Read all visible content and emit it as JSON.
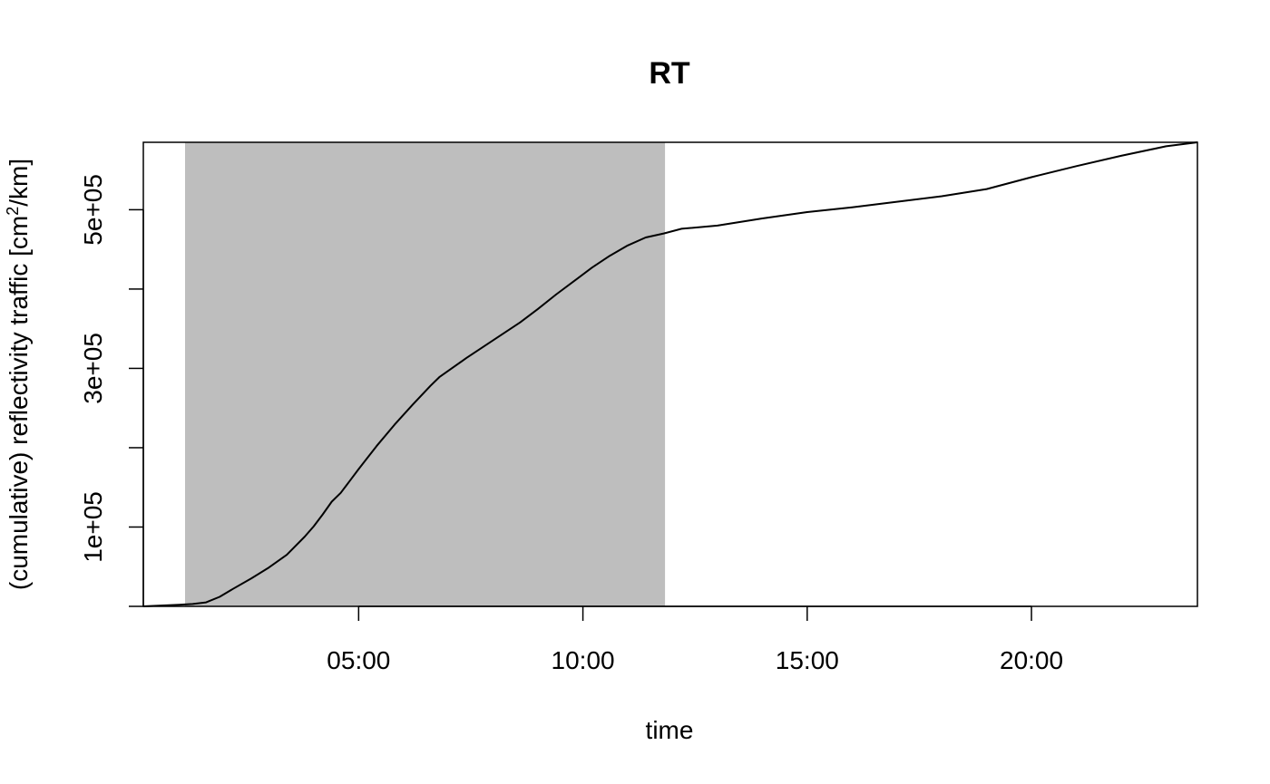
{
  "chart_data": {
    "type": "line",
    "title": "RT",
    "xlabel": "time",
    "ylabel": "(cumulative) reflectivity traffic [cm",
    "ylabel_sup": "2",
    "ylabel_suffix": "/km]",
    "x_unit": "hours",
    "xlim": [
      0.2,
      23.7
    ],
    "ylim": [
      0,
      585000
    ],
    "x_ticks": [
      {
        "value": 5,
        "label": "05:00"
      },
      {
        "value": 10,
        "label": "10:00"
      },
      {
        "value": 15,
        "label": "15:00"
      },
      {
        "value": 20,
        "label": "20:00"
      }
    ],
    "y_ticks": [
      {
        "value": 0,
        "label": ""
      },
      {
        "value": 100000,
        "label": "1e+05"
      },
      {
        "value": 200000,
        "label": ""
      },
      {
        "value": 300000,
        "label": "3e+05"
      },
      {
        "value": 400000,
        "label": ""
      },
      {
        "value": 500000,
        "label": "5e+05"
      }
    ],
    "shaded_region": {
      "x_start": 1.13,
      "x_end": 11.83,
      "color": "#bebebe"
    },
    "line_color": "#000000",
    "series": [
      {
        "x": [
          0.2,
          0.6,
          1.0,
          1.3,
          1.6,
          1.9,
          2.2,
          2.6,
          3.0,
          3.4,
          3.8,
          4.0,
          4.2,
          4.4,
          4.6,
          4.8,
          5.0,
          5.4,
          5.8,
          6.2,
          6.6,
          6.8,
          7.0,
          7.4,
          7.8,
          8.2,
          8.6,
          9.0,
          9.4,
          9.8,
          10.2,
          10.6,
          11.0,
          11.4,
          11.8,
          12.2,
          13.0,
          14.0,
          15.0,
          16.0,
          17.0,
          18.0,
          19.0,
          20.0,
          21.0,
          22.0,
          23.0,
          23.7
        ],
        "y": [
          0,
          1000,
          2000,
          3000,
          5000,
          12000,
          22000,
          35000,
          49000,
          65000,
          88000,
          101000,
          116000,
          132000,
          143000,
          158000,
          173000,
          202000,
          229000,
          254000,
          278000,
          289000,
          297000,
          313000,
          328000,
          343000,
          358000,
          375000,
          393000,
          410000,
          427000,
          442000,
          455000,
          465000,
          470000,
          476000,
          480000,
          489000,
          497000,
          503000,
          510000,
          517000,
          526000,
          541000,
          555000,
          568000,
          580000,
          585000
        ]
      }
    ]
  }
}
